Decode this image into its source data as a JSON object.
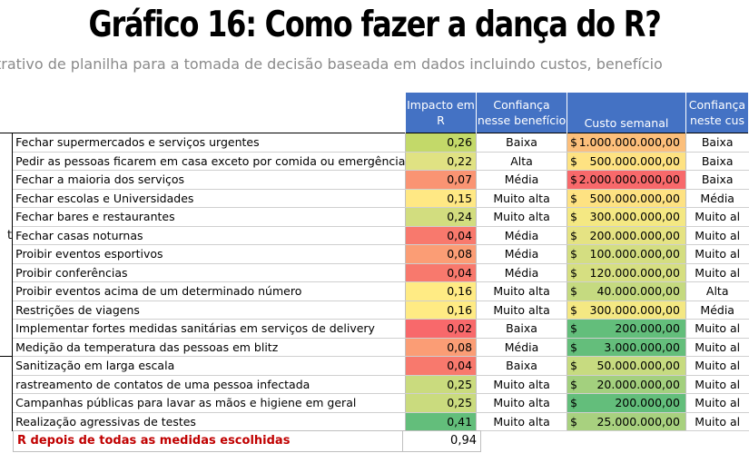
{
  "title": "Gráfico 16: Como fazer a dança do R?",
  "subtitle": "trativo de planilha para a tomada de decisão baseada em dados incluindo custos, benefício",
  "headers": {
    "impact": "Impacto em R",
    "confidence_benefit": "Confiança nesse benefício",
    "weekly_cost": "Custo semanal",
    "confidence_cost": "Confiança neste cus"
  },
  "group_labels": {
    "left_t": "t"
  },
  "currency_symbol": "$",
  "rows": [
    {
      "measure": "Fechar supermercados e serviços urgentes",
      "impact": "0,26",
      "conf": "Baixa",
      "cost": "1.000.000.000,00",
      "cost_conf": "Baixa",
      "impact_color": "#c3d969",
      "cost_color": "#fcbf7b"
    },
    {
      "measure": "Pedir as pessoas ficarem em casa exceto por comida ou emergência",
      "impact": "0,22",
      "conf": "Alta",
      "cost": "500.000.000,00",
      "cost_conf": "Baixa",
      "impact_color": "#e0e283",
      "cost_color": "#fee282"
    },
    {
      "measure": "Fechar a maioria dos serviços",
      "impact": "0,07",
      "conf": "Média",
      "cost": "2.000.000.000,00",
      "cost_conf": "Baixa",
      "impact_color": "#fa9473",
      "cost_color": "#f8696b"
    },
    {
      "measure": "Fechar escolas e Universidades",
      "impact": "0,15",
      "conf": "Muito alta",
      "cost": "500.000.000,00",
      "cost_conf": "Média",
      "impact_color": "#ffe884",
      "cost_color": "#fee282"
    },
    {
      "measure": "Fechar bares e restaurantes",
      "impact": "0,24",
      "conf": "Muito alta",
      "cost": "300.000.000,00",
      "cost_conf": "Muito al",
      "impact_color": "#d2dd7f",
      "cost_color": "#f4e883"
    },
    {
      "measure": "Fechar casas noturnas",
      "impact": "0,04",
      "conf": "Média",
      "cost": "200.000.000,00",
      "cost_conf": "Muito al",
      "impact_color": "#f8796d",
      "cost_color": "#e5e383"
    },
    {
      "measure": "Proibir eventos esportivos",
      "impact": "0,08",
      "conf": "Média",
      "cost": "100.000.000,00",
      "cost_conf": "Muito al",
      "impact_color": "#fb9d75",
      "cost_color": "#d4de81"
    },
    {
      "measure": "Proibir conferências",
      "impact": "0,04",
      "conf": "Média",
      "cost": "120.000.000,00",
      "cost_conf": "Muito al",
      "impact_color": "#f8796d",
      "cost_color": "#d6df81"
    },
    {
      "measure": "Proibir eventos acima de um determinado número",
      "impact": "0,16",
      "conf": "Muito alta",
      "cost": "40.000.000,00",
      "cost_conf": "Alta",
      "impact_color": "#ffeb84",
      "cost_color": "#c5da80"
    },
    {
      "measure": "Restrições de viagens",
      "impact": "0,16",
      "conf": "Muito alta",
      "cost": "300.000.000,00",
      "cost_conf": "Média",
      "impact_color": "#ffeb84",
      "cost_color": "#f4e883"
    },
    {
      "measure": "Implementar fortes medidas sanitárias em serviços de delivery",
      "impact": "0,02",
      "conf": "Baixa",
      "cost": "200.000,00",
      "cost_conf": "Muito al",
      "impact_color": "#f8696b",
      "cost_color": "#63be7b"
    },
    {
      "measure": "Medição da temperatura das pessoas em blitz",
      "impact": "0,08",
      "conf": "Média",
      "cost": "3.000.000,00",
      "cost_conf": "Muito al",
      "impact_color": "#fb9d75",
      "cost_color": "#64be7b"
    },
    {
      "measure": "Sanitização em larga escala",
      "impact": "0,04",
      "conf": "Baixa",
      "cost": "50.000.000,00",
      "cost_conf": "Muito al",
      "impact_color": "#f8796d",
      "cost_color": "#c7db80"
    },
    {
      "measure": "rastreamento de contatos de uma pessoa infectada",
      "impact": "0,25",
      "conf": "Muito alta",
      "cost": "20.000.000,00",
      "cost_conf": "Muito al",
      "impact_color": "#cadb7e",
      "cost_color": "#a3d07e"
    },
    {
      "measure": "Campanhas públicas para lavar as mãos e higiene em geral",
      "impact": "0,25",
      "conf": "Muito alta",
      "cost": "200.000,00",
      "cost_conf": "Muito al",
      "impact_color": "#cadb7e",
      "cost_color": "#63be7b"
    },
    {
      "measure": "Realização agressivas de testes",
      "impact": "0,41",
      "conf": "Muito alta",
      "cost": "25.000.000,00",
      "cost_conf": "Muito al",
      "impact_color": "#63be7b",
      "cost_color": "#a8d17f"
    }
  ],
  "summary": {
    "label": "R depois de todas as medidas escolhidas",
    "value": "0,94"
  }
}
